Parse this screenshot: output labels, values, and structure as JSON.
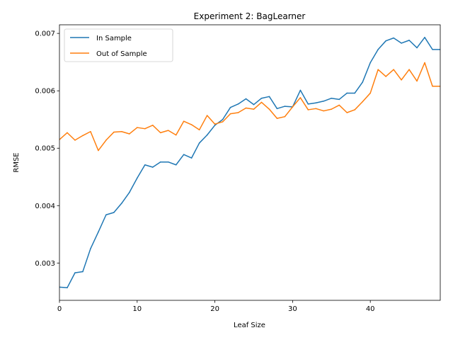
{
  "chart_data": {
    "type": "line",
    "title": "Experiment 2: BagLearner",
    "xlabel": "Leaf Size",
    "ylabel": "RMSE",
    "xlim": [
      0,
      49
    ],
    "ylim": [
      0.00235,
      0.00715
    ],
    "xticks": [
      0,
      10,
      20,
      30,
      40
    ],
    "xtick_labels": [
      "0",
      "10",
      "20",
      "30",
      "40"
    ],
    "yticks": [
      0.003,
      0.004,
      0.005,
      0.006,
      0.007
    ],
    "ytick_labels": [
      "0.003",
      "0.004",
      "0.005",
      "0.006",
      "0.007"
    ],
    "grid": false,
    "legend_position": "upper-left",
    "x": [
      0,
      1,
      2,
      3,
      4,
      5,
      6,
      7,
      8,
      9,
      10,
      11,
      12,
      13,
      14,
      15,
      16,
      17,
      18,
      19,
      20,
      21,
      22,
      23,
      24,
      25,
      26,
      27,
      28,
      29,
      30,
      31,
      32,
      33,
      34,
      35,
      36,
      37,
      38,
      39,
      40,
      41,
      42,
      43,
      44,
      45,
      46,
      47,
      48,
      49
    ],
    "series": [
      {
        "name": "In Sample",
        "color": "#1f77b4",
        "values": [
          0.00258,
          0.00257,
          0.00283,
          0.00285,
          0.00325,
          0.00354,
          0.00384,
          0.00388,
          0.00404,
          0.00423,
          0.00448,
          0.00471,
          0.00467,
          0.00476,
          0.00476,
          0.00471,
          0.00489,
          0.00483,
          0.00509,
          0.00523,
          0.0054,
          0.0055,
          0.00571,
          0.00577,
          0.00586,
          0.00576,
          0.00587,
          0.0059,
          0.00569,
          0.00573,
          0.00572,
          0.00601,
          0.00577,
          0.00579,
          0.00582,
          0.00587,
          0.00585,
          0.00596,
          0.00596,
          0.00615,
          0.00649,
          0.00672,
          0.00687,
          0.00692,
          0.00683,
          0.00688,
          0.00675,
          0.00693,
          0.00672,
          0.00672
        ]
      },
      {
        "name": "Out of Sample",
        "color": "#ff7f0e",
        "values": [
          0.00515,
          0.00527,
          0.00514,
          0.00522,
          0.00529,
          0.00496,
          0.00514,
          0.00528,
          0.00529,
          0.00525,
          0.00536,
          0.00534,
          0.0054,
          0.00527,
          0.00531,
          0.00523,
          0.00547,
          0.00541,
          0.00532,
          0.00557,
          0.00542,
          0.00546,
          0.0056,
          0.00562,
          0.0057,
          0.00568,
          0.0058,
          0.00568,
          0.00552,
          0.00555,
          0.00572,
          0.00588,
          0.00567,
          0.00569,
          0.00565,
          0.00568,
          0.00575,
          0.00562,
          0.00567,
          0.00581,
          0.00596,
          0.00637,
          0.00625,
          0.00637,
          0.00619,
          0.00637,
          0.00617,
          0.00649,
          0.00608,
          0.00608
        ]
      }
    ]
  }
}
